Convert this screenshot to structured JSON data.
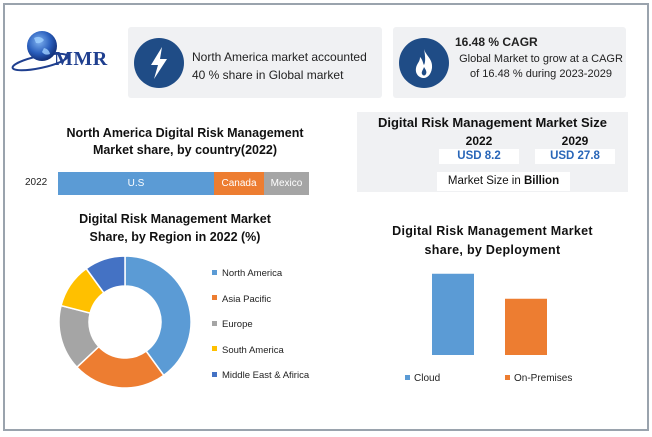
{
  "brand": {
    "name": "MMR"
  },
  "card_share": {
    "text_line1": "North America market accounted",
    "text_line2": "40 % share in Global market"
  },
  "card_cagr": {
    "title": "16.48 % CAGR",
    "text_line1": "Global Market to grow at a CAGR",
    "text_line2": "of 16.48 % during 2023-2029"
  },
  "market_size": {
    "title": "Digital Risk Management Market Size",
    "year1": "2022",
    "value1": "USD 8.2",
    "year2": "2029",
    "value2": "USD 27.8",
    "unit_prefix": "Market Size in ",
    "unit_bold": "Billion"
  },
  "colors": {
    "blue": "#5b9bd5",
    "orange": "#ed7d31",
    "gray": "#a5a5a5",
    "yellow": "#ffc000",
    "navy": "#4472c4",
    "icon_bg": "#1f4c86"
  },
  "chart_data": [
    {
      "type": "bar",
      "orientation": "horizontal-stacked",
      "title": "North America Digital Risk Management Market share, by country(2022)",
      "title_line1": "North America Digital Risk Management",
      "title_line2": "Market share, by country(2022)",
      "categories": [
        "2022"
      ],
      "series": [
        {
          "name": "U.S",
          "values": [
            0.62
          ],
          "color": "#5b9bd5"
        },
        {
          "name": "Canada",
          "values": [
            0.2
          ],
          "color": "#ed7d31"
        },
        {
          "name": "Mexico",
          "values": [
            0.18
          ],
          "color": "#a5a5a5"
        }
      ]
    },
    {
      "type": "pie",
      "donut": true,
      "title": "Digital Risk Management Market Share, by Region in 2022 (%)",
      "title_line1": "Digital Risk Management Market",
      "title_line2": "Share, by Region in 2022 (%)",
      "slices": [
        {
          "name": "North America",
          "value": 40,
          "color": "#5b9bd5"
        },
        {
          "name": "Asia Pacific",
          "value": 23,
          "color": "#ed7d31"
        },
        {
          "name": "Europe",
          "value": 16,
          "color": "#a5a5a5"
        },
        {
          "name": "South America",
          "value": 11,
          "color": "#ffc000"
        },
        {
          "name": "Middle East & Afirica",
          "value": 10,
          "color": "#4472c4"
        }
      ],
      "legend": "right"
    },
    {
      "type": "bar",
      "title": "Digital Risk Management Market share, by Deployment",
      "title_line1": "Digital Risk Management Market",
      "title_line2": "share, by Deployment",
      "categories": [
        "Cloud",
        "On-Premises"
      ],
      "values": [
        65,
        45
      ],
      "colors": [
        "#5b9bd5",
        "#ed7d31"
      ],
      "ylim": [
        0,
        100
      ],
      "legend": "bottom"
    }
  ]
}
